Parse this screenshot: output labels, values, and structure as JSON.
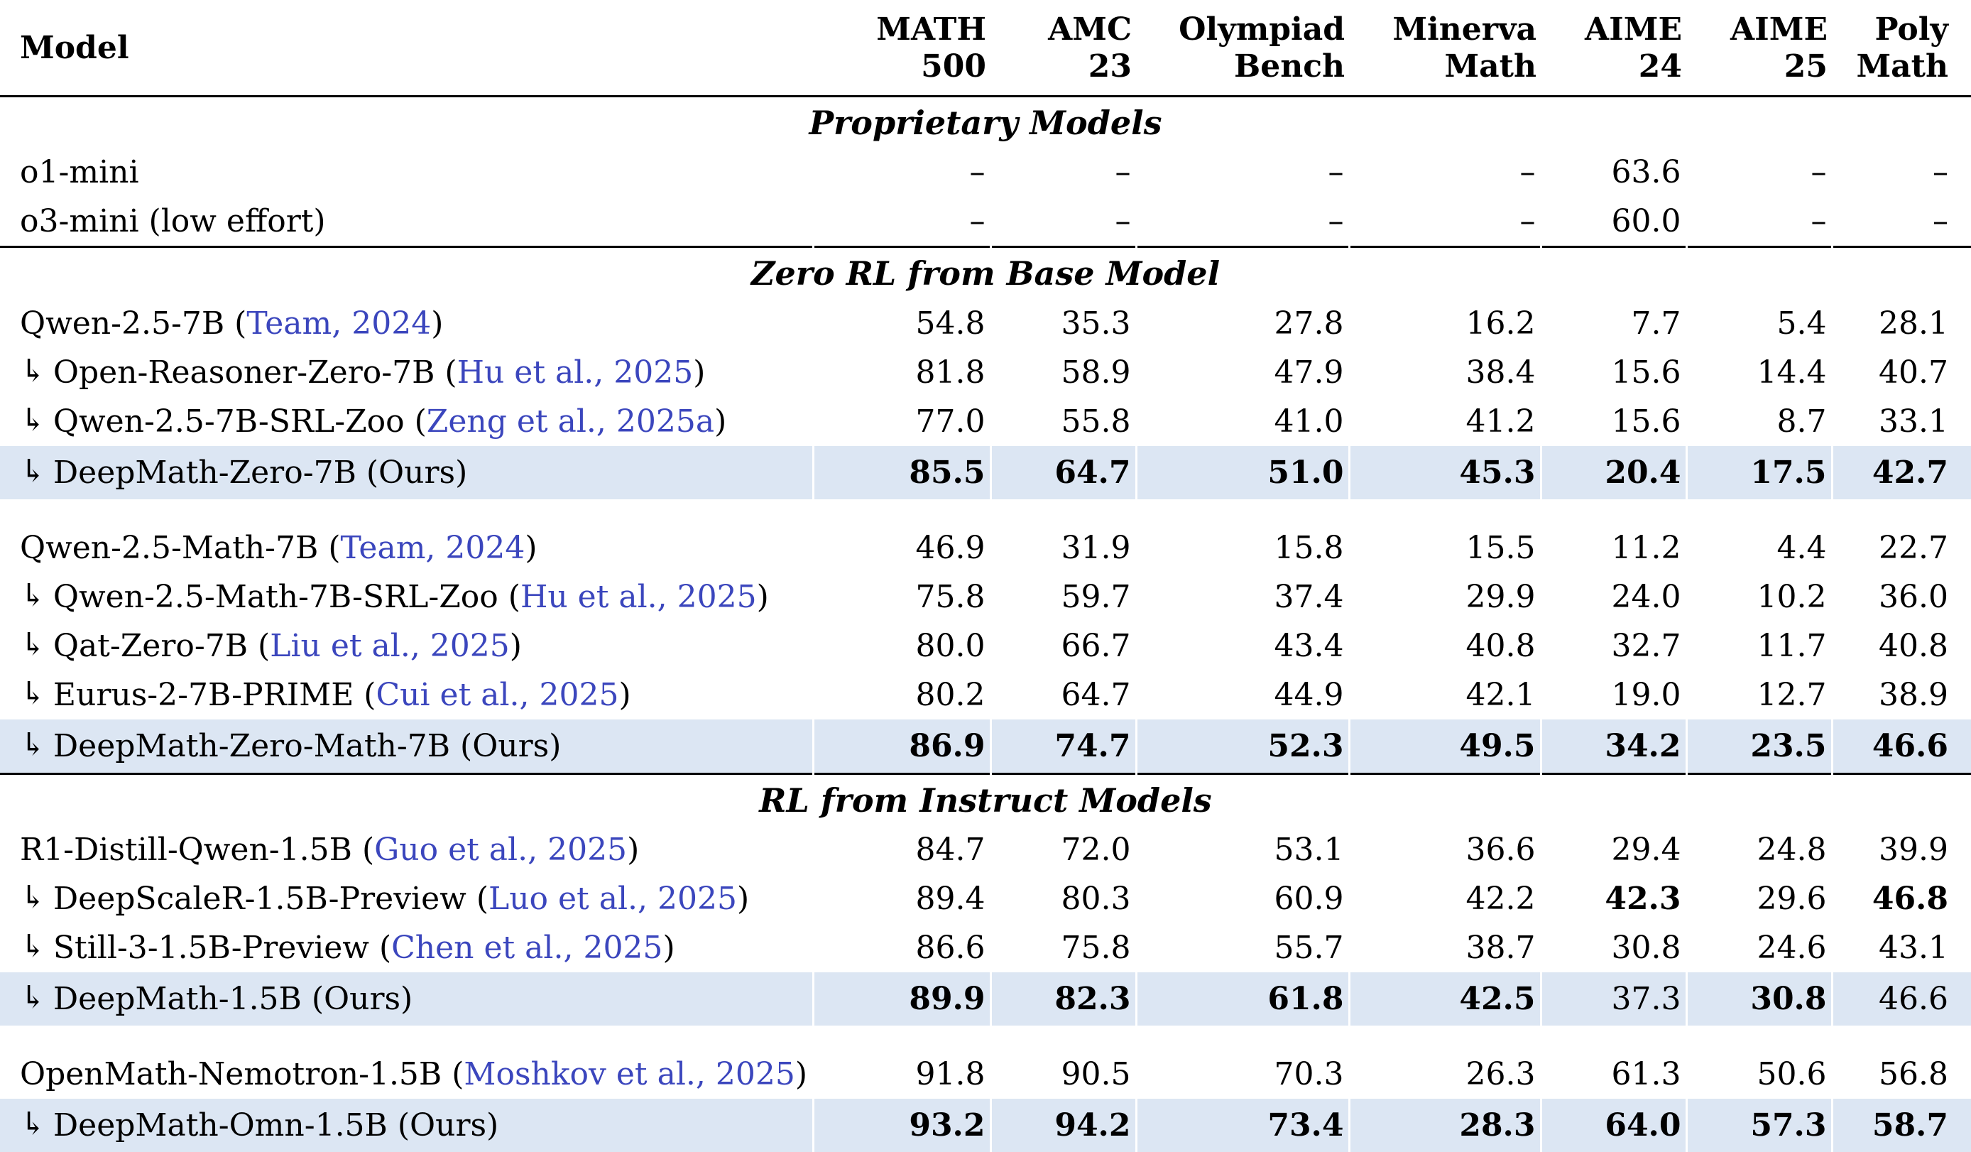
{
  "colors": {
    "highlight": "#dce6f3",
    "citation": "#3b46bd",
    "rule": "#000000"
  },
  "table": {
    "columns": [
      {
        "label": "Model"
      },
      {
        "line1": "MATH",
        "line2": "500"
      },
      {
        "line1": "AMC",
        "line2": "23"
      },
      {
        "line1": "Olympiad",
        "line2": "Bench"
      },
      {
        "line1": "Minerva",
        "line2": "Math"
      },
      {
        "line1": "AIME",
        "line2": "24"
      },
      {
        "line1": "AIME",
        "line2": "25"
      },
      {
        "line1": "Poly",
        "line2": "Math"
      }
    ],
    "sections": [
      {
        "title": "Proprietary Models",
        "groups": [
          {
            "rows": [
              {
                "arrow": false,
                "name": "o1-mini",
                "cite": null,
                "values": [
                  "–",
                  "–",
                  "–",
                  "–",
                  "63.6",
                  "–",
                  "–"
                ],
                "bold": [],
                "highlight": false
              },
              {
                "arrow": false,
                "name": "o3-mini (low effort)",
                "cite": null,
                "values": [
                  "–",
                  "–",
                  "–",
                  "–",
                  "60.0",
                  "–",
                  "–"
                ],
                "bold": [],
                "highlight": false
              }
            ]
          }
        ]
      },
      {
        "title": "Zero RL from Base Model",
        "groups": [
          {
            "rows": [
              {
                "arrow": false,
                "name": "Qwen-2.5-7B",
                "cite": "Team, 2024",
                "values": [
                  "54.8",
                  "35.3",
                  "27.8",
                  "16.2",
                  "7.7",
                  "5.4",
                  "28.1"
                ],
                "bold": [],
                "highlight": false
              },
              {
                "arrow": true,
                "name": "Open-Reasoner-Zero-7B",
                "cite": "Hu et al., 2025",
                "values": [
                  "81.8",
                  "58.9",
                  "47.9",
                  "38.4",
                  "15.6",
                  "14.4",
                  "40.7"
                ],
                "bold": [],
                "highlight": false
              },
              {
                "arrow": true,
                "name": "Qwen-2.5-7B-SRL-Zoo",
                "cite": "Zeng et al., 2025a",
                "values": [
                  "77.0",
                  "55.8",
                  "41.0",
                  "41.2",
                  "15.6",
                  "8.7",
                  "33.1"
                ],
                "bold": [],
                "highlight": false
              },
              {
                "arrow": true,
                "name": "DeepMath-Zero-7B (Ours)",
                "cite": null,
                "values": [
                  "85.5",
                  "64.7",
                  "51.0",
                  "45.3",
                  "20.4",
                  "17.5",
                  "42.7"
                ],
                "bold": [
                  0,
                  1,
                  2,
                  3,
                  4,
                  5,
                  6
                ],
                "highlight": true
              }
            ]
          },
          {
            "rows": [
              {
                "arrow": false,
                "name": "Qwen-2.5-Math-7B",
                "cite": "Team, 2024",
                "values": [
                  "46.9",
                  "31.9",
                  "15.8",
                  "15.5",
                  "11.2",
                  "4.4",
                  "22.7"
                ],
                "bold": [],
                "highlight": false
              },
              {
                "arrow": true,
                "name": "Qwen-2.5-Math-7B-SRL-Zoo",
                "cite": "Hu et al., 2025",
                "values": [
                  "75.8",
                  "59.7",
                  "37.4",
                  "29.9",
                  "24.0",
                  "10.2",
                  "36.0"
                ],
                "bold": [],
                "highlight": false
              },
              {
                "arrow": true,
                "name": "Qat-Zero-7B",
                "cite": "Liu et al., 2025",
                "values": [
                  "80.0",
                  "66.7",
                  "43.4",
                  "40.8",
                  "32.7",
                  "11.7",
                  "40.8"
                ],
                "bold": [],
                "highlight": false
              },
              {
                "arrow": true,
                "name": "Eurus-2-7B-PRIME",
                "cite": "Cui et al., 2025",
                "values": [
                  "80.2",
                  "64.7",
                  "44.9",
                  "42.1",
                  "19.0",
                  "12.7",
                  "38.9"
                ],
                "bold": [],
                "highlight": false
              },
              {
                "arrow": true,
                "name": "DeepMath-Zero-Math-7B (Ours)",
                "cite": null,
                "values": [
                  "86.9",
                  "74.7",
                  "52.3",
                  "49.5",
                  "34.2",
                  "23.5",
                  "46.6"
                ],
                "bold": [
                  0,
                  1,
                  2,
                  3,
                  4,
                  5,
                  6
                ],
                "highlight": true
              }
            ]
          }
        ]
      },
      {
        "title": "RL from Instruct Models",
        "groups": [
          {
            "rows": [
              {
                "arrow": false,
                "name": "R1-Distill-Qwen-1.5B",
                "cite": "Guo et al., 2025",
                "values": [
                  "84.7",
                  "72.0",
                  "53.1",
                  "36.6",
                  "29.4",
                  "24.8",
                  "39.9"
                ],
                "bold": [],
                "highlight": false
              },
              {
                "arrow": true,
                "name": "DeepScaleR-1.5B-Preview",
                "cite": "Luo et al., 2025",
                "values": [
                  "89.4",
                  "80.3",
                  "60.9",
                  "42.2",
                  "42.3",
                  "29.6",
                  "46.8"
                ],
                "bold": [
                  4,
                  6
                ],
                "highlight": false
              },
              {
                "arrow": true,
                "name": "Still-3-1.5B-Preview",
                "cite": "Chen et al., 2025",
                "values": [
                  "86.6",
                  "75.8",
                  "55.7",
                  "38.7",
                  "30.8",
                  "24.6",
                  "43.1"
                ],
                "bold": [],
                "highlight": false
              },
              {
                "arrow": true,
                "name": "DeepMath-1.5B (Ours)",
                "cite": null,
                "values": [
                  "89.9",
                  "82.3",
                  "61.8",
                  "42.5",
                  "37.3",
                  "30.8",
                  "46.6"
                ],
                "bold": [
                  0,
                  1,
                  2,
                  3,
                  5
                ],
                "highlight": true
              }
            ]
          },
          {
            "rows": [
              {
                "arrow": false,
                "name": "OpenMath-Nemotron-1.5B",
                "cite": "Moshkov et al., 2025",
                "values": [
                  "91.8",
                  "90.5",
                  "70.3",
                  "26.3",
                  "61.3",
                  "50.6",
                  "56.8"
                ],
                "bold": [],
                "highlight": false
              },
              {
                "arrow": true,
                "name": "DeepMath-Omn-1.5B (Ours)",
                "cite": null,
                "values": [
                  "93.2",
                  "94.2",
                  "73.4",
                  "28.3",
                  "64.0",
                  "57.3",
                  "58.7"
                ],
                "bold": [
                  0,
                  1,
                  2,
                  3,
                  4,
                  5,
                  6
                ],
                "highlight": true
              }
            ]
          }
        ]
      }
    ]
  }
}
